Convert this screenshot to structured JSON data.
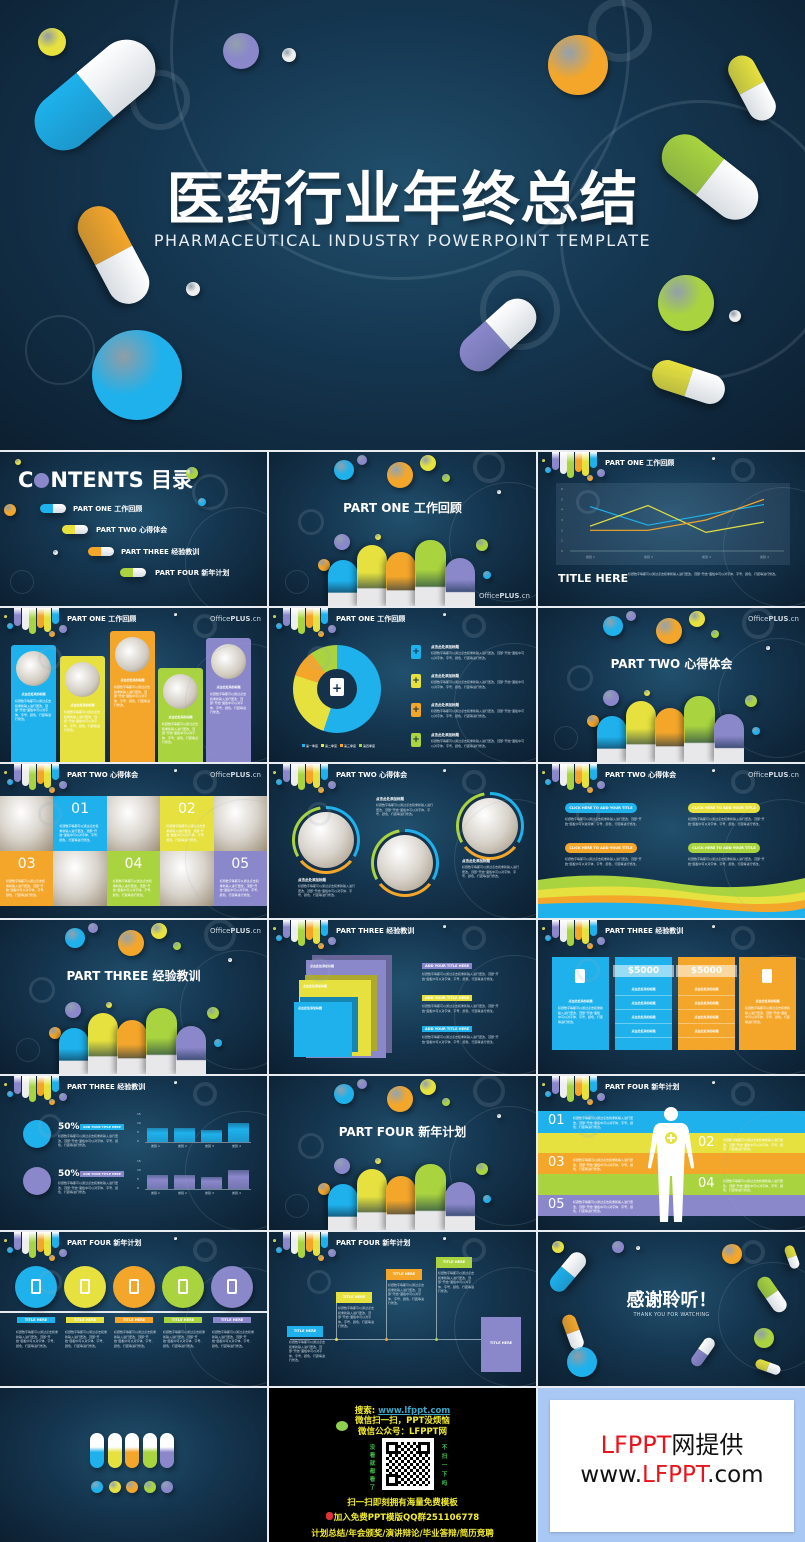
{
  "palette": {
    "blue": "#1eb1ec",
    "yellow": "#e6e13f",
    "orange": "#f4a62a",
    "green": "#a9d43f",
    "purple": "#8b87cb",
    "navy": "#153650"
  },
  "cover": {
    "title": "医药行业年终总结",
    "subtitle": "PHARMACEUTICAL INDUSTRY POWERPOINT TEMPLATE"
  },
  "common": {
    "brand_light": "Office",
    "brand_bold": "PLUS",
    ".cn": ".cn",
    "brand_suffix": ".cn",
    "placeholder_title": "点击此处添加标题",
    "body": "标题数字等都可以通过点击和重新输入进行更改，顶部“开始”面板中可以对字体、字号、颜色、行距等进行修改。",
    "title_here": "TITLE HERE",
    "add_title": "ADD YOUR TITLE HERE",
    "click_title": "CLICK HERE TO ADD YOUR TITLE"
  },
  "sections": {
    "one": "PART ONE 工作回顾",
    "two": "PART TWO 心得体会",
    "three": "PART THREE 经验教训",
    "four": "PART FOUR 新年计划"
  },
  "contents": {
    "heading_c": "C",
    "heading_rest": "NTENTS 目录",
    "items": [
      "PART ONE 工作回顾",
      "PART TWO 心得体会",
      "PART THREE 经验教训",
      "PART FOUR 新年计划"
    ]
  },
  "line_chart": {
    "categories": [
      "类别 1",
      "类别 2",
      "类别 3",
      "类别 4"
    ],
    "y_ticks": [
      "6",
      "5",
      "4",
      "3",
      "2",
      "1",
      "0"
    ],
    "series": [
      {
        "color": "#1eb1ec",
        "values": [
          4.3,
          2.5,
          3.5,
          4.5
        ]
      },
      {
        "color": "#e6e13f",
        "values": [
          2.4,
          4.4,
          1.8,
          2.8
        ]
      },
      {
        "color": "#f4a62a",
        "values": [
          2,
          2,
          3,
          5
        ]
      }
    ]
  },
  "donut": {
    "values": [
      55,
      25,
      10,
      10
    ],
    "legend": [
      "第一季度",
      "第二季度",
      "第三季度",
      "第四季度"
    ]
  },
  "tiles": [
    "01",
    "02",
    "03",
    "04",
    "05"
  ],
  "price": "$5000",
  "progress": {
    "percent_label": "50%",
    "value": 50,
    "bar_categories": [
      "类别 1",
      "类别 2",
      "类别 3",
      "类别 4"
    ],
    "y_ticks": [
      "15",
      "10",
      "5",
      "0"
    ]
  },
  "plan_numbers": [
    "01",
    "02",
    "03",
    "04",
    "05"
  ],
  "thanks": {
    "title": "感谢聆听！",
    "subtitle": "THANK YOU FOR WATCHING"
  },
  "ad": {
    "search_label": "搜索: ",
    "search_url": "www.lfppt.com",
    "line1": "微信扫一扫，PPT没烦恼",
    "line2": "微信公众号：LFPPT网",
    "left_vertical": "没看就都看了",
    "right_vertical": "不扫一下吗",
    "line3": "扫一扫即刻拥有海量免费模板",
    "line4": "加入免费PPT模版QQ群251106778",
    "line5": "计划总结/年会颁奖/演讲辩论/毕业答辩/简历竞聘"
  },
  "provider": {
    "line1_red": "LFPPT",
    "line1_black": "网提供",
    "line2_a": "www.",
    "line2_red": "LFPPT",
    "line2_b": ".com"
  }
}
